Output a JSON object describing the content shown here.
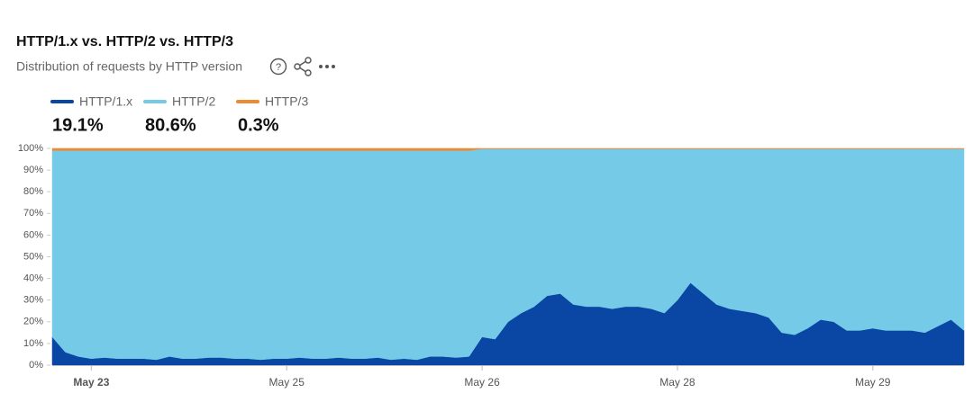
{
  "header": {
    "title": "HTTP/1.x vs. HTTP/2 vs. HTTP/3",
    "subtitle": "Distribution of requests by HTTP version"
  },
  "chart_data": {
    "type": "stacked_area",
    "totals": [
      {
        "value": 19.1,
        "label": "19.1%"
      },
      {
        "value": 80.6,
        "label": "80.6%"
      },
      {
        "value": 0.3,
        "label": "0.3%"
      }
    ],
    "x": [
      0,
      2,
      4,
      6,
      8,
      10,
      12,
      14,
      16,
      18,
      20,
      22,
      24,
      26,
      28,
      30,
      32,
      34,
      36,
      38,
      40,
      42,
      44,
      46,
      48,
      50,
      52,
      54,
      56,
      58,
      60,
      62,
      64,
      66,
      68,
      70,
      72,
      74,
      76,
      78,
      80,
      82,
      84,
      86,
      88,
      90,
      92,
      94,
      96,
      98,
      100,
      102,
      104,
      106,
      108,
      110,
      112,
      114,
      116,
      118,
      120,
      122,
      124,
      126,
      128,
      130,
      132,
      134,
      136,
      138,
      140
    ],
    "xlim": [
      0,
      140
    ],
    "xticks": [
      {
        "value": 6,
        "label": "May 23"
      },
      {
        "value": 36,
        "label": "May 25"
      },
      {
        "value": 66,
        "label": "May 26"
      },
      {
        "value": 96,
        "label": "May 28"
      },
      {
        "value": 126,
        "label": "May 29"
      }
    ],
    "ylim": [
      0,
      100
    ],
    "yticks": [
      {
        "value": 0,
        "label": "0%"
      },
      {
        "value": 10,
        "label": "10%"
      },
      {
        "value": 20,
        "label": "20%"
      },
      {
        "value": 30,
        "label": "30%"
      },
      {
        "value": 40,
        "label": "40%"
      },
      {
        "value": 50,
        "label": "50%"
      },
      {
        "value": 60,
        "label": "60%"
      },
      {
        "value": 70,
        "label": "70%"
      },
      {
        "value": 80,
        "label": "80%"
      },
      {
        "value": 90,
        "label": "90%"
      },
      {
        "value": 100,
        "label": "100%"
      }
    ],
    "series": [
      {
        "name": "HTTP/1.x",
        "color": "#0a46a3",
        "values": [
          13,
          6,
          4,
          3,
          3.5,
          3,
          3,
          3,
          2.5,
          4,
          3,
          3,
          3.5,
          3.5,
          3,
          3,
          2.5,
          3,
          3,
          3.5,
          3,
          3,
          3.5,
          3,
          3,
          3.5,
          2.5,
          3,
          2.5,
          4,
          4,
          3.5,
          4,
          13,
          12,
          20,
          24,
          27,
          32,
          33,
          28,
          27,
          27,
          26,
          27,
          27,
          26,
          24,
          30,
          38,
          33,
          28,
          26,
          25,
          24,
          22,
          15,
          14,
          17,
          21,
          20,
          16,
          16,
          17,
          16,
          16,
          16,
          15,
          18,
          21,
          16
        ]
      },
      {
        "name": "HTTP/2",
        "color": "#75cbe7",
        "values": [
          86,
          93,
          95,
          96,
          95.5,
          96,
          96,
          96,
          96.5,
          95,
          96,
          96,
          95.5,
          95.5,
          96,
          96,
          96.5,
          96,
          96,
          95.5,
          96,
          96,
          95.5,
          96,
          96,
          95.5,
          96.5,
          96,
          96.5,
          95,
          95,
          95.5,
          95,
          86.8,
          87.8,
          79.8,
          75.8,
          72.8,
          67.8,
          66.8,
          71.8,
          72.8,
          72.8,
          73.8,
          72.8,
          72.8,
          73.8,
          75.8,
          69.8,
          61.8,
          66.8,
          71.8,
          73.8,
          74.8,
          75.8,
          77.8,
          84.8,
          85.8,
          82.8,
          78.8,
          79.8,
          83.8,
          83.8,
          82.8,
          83.8,
          83.8,
          83.8,
          84.8,
          81.8,
          78.8,
          83.8
        ]
      },
      {
        "name": "HTTP/3",
        "color": "#ee8a32",
        "values": [
          1,
          1,
          1,
          1,
          1,
          1,
          1,
          1,
          1,
          1,
          1,
          1,
          1,
          1,
          1,
          1,
          1,
          1,
          1,
          1,
          1,
          1,
          1,
          1,
          1,
          1,
          1,
          1,
          1,
          1,
          1,
          1,
          1,
          0.2,
          0.2,
          0.2,
          0.2,
          0.2,
          0.2,
          0.2,
          0.2,
          0.2,
          0.2,
          0.2,
          0.2,
          0.2,
          0.2,
          0.2,
          0.2,
          0.2,
          0.2,
          0.2,
          0.2,
          0.2,
          0.2,
          0.2,
          0.2,
          0.2,
          0.2,
          0.2,
          0.2,
          0.2,
          0.2,
          0.2,
          0.2,
          0.2,
          0.2,
          0.2,
          0.2,
          0.2,
          0.2
        ]
      }
    ]
  }
}
